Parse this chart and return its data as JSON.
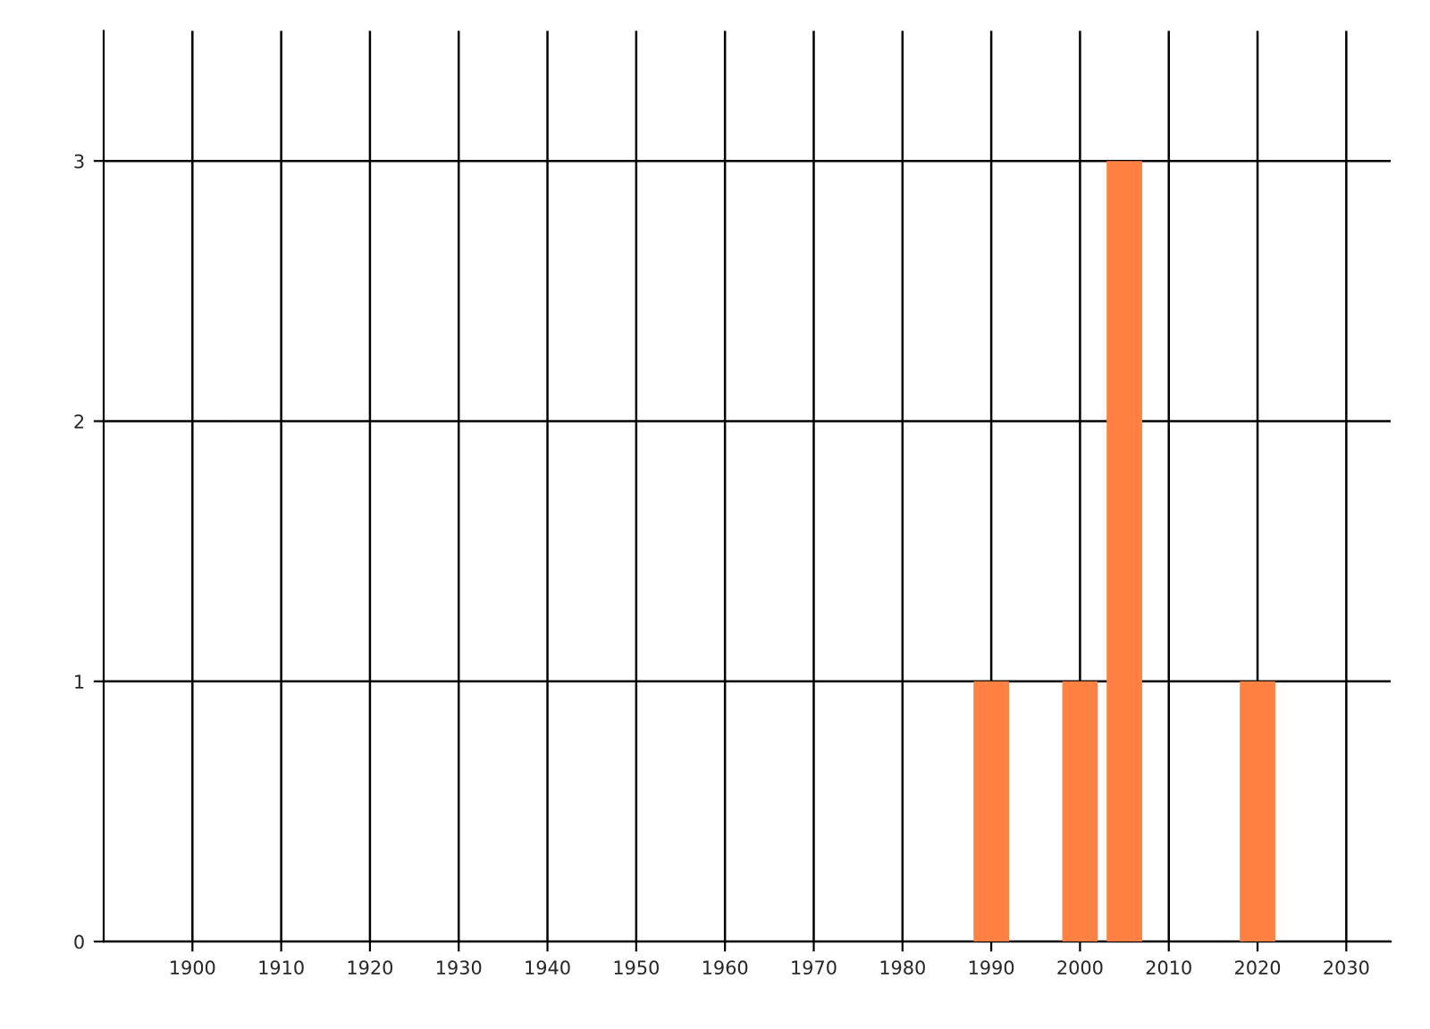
{
  "chart_data": {
    "type": "bar",
    "x": [
      1990,
      2000,
      2005,
      2020
    ],
    "values": [
      1,
      1,
      3,
      1
    ],
    "color": "#ff8040",
    "xlim": [
      1890,
      2035
    ],
    "xticks": [
      1900,
      1910,
      1920,
      1930,
      1940,
      1950,
      1960,
      1970,
      1980,
      1990,
      2000,
      2010,
      2020,
      2030
    ],
    "ylim": [
      0,
      3.5
    ],
    "yticks": [
      0,
      1,
      2,
      3
    ],
    "grid": true,
    "legend": false
  }
}
